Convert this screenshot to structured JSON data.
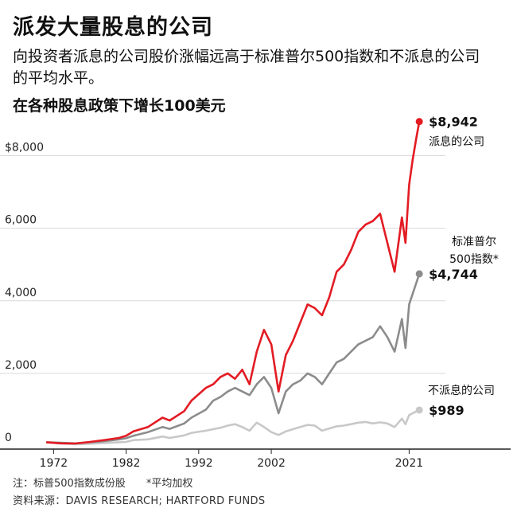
{
  "header": {
    "title": "派发大量股息的公司",
    "subtitle": "向投资者派息的公司股价涨幅远高于标准普尔500指数和不派息的公司的平均水平。",
    "metric": "在各种股息政策下增长100美元"
  },
  "chart_data": {
    "type": "line",
    "title": "在各种股息政策下增长100美元",
    "xlabel": "",
    "ylabel": "",
    "xlim": [
      1969,
      2026
    ],
    "ylim": [
      0,
      9000
    ],
    "x_ticks": [
      1972,
      1982,
      1992,
      2002,
      2021
    ],
    "y_ticks": [
      {
        "value": 0,
        "label": "0"
      },
      {
        "value": 2000,
        "label": "2,000"
      },
      {
        "value": 4000,
        "label": "4,000"
      },
      {
        "value": 6000,
        "label": "6,000"
      },
      {
        "value": 8000,
        "label": "$8,000"
      }
    ],
    "grid": "horizontal",
    "series": [
      {
        "name": "派息的公司",
        "color": "#e31b23",
        "end_label": "$8,942",
        "end_value": 8942,
        "points": [
          [
            1971,
            100
          ],
          [
            1973,
            70
          ],
          [
            1975,
            65
          ],
          [
            1977,
            110
          ],
          [
            1979,
            160
          ],
          [
            1981,
            220
          ],
          [
            1982,
            280
          ],
          [
            1983,
            400
          ],
          [
            1985,
            520
          ],
          [
            1987,
            780
          ],
          [
            1988,
            700
          ],
          [
            1990,
            960
          ],
          [
            1991,
            1250
          ],
          [
            1993,
            1600
          ],
          [
            1994,
            1700
          ],
          [
            1995,
            1900
          ],
          [
            1996,
            2000
          ],
          [
            1997,
            1850
          ],
          [
            1998,
            2100
          ],
          [
            1999,
            1700
          ],
          [
            2000,
            2600
          ],
          [
            2001,
            3200
          ],
          [
            2002,
            2800
          ],
          [
            2003,
            1500
          ],
          [
            2004,
            2500
          ],
          [
            2005,
            2900
          ],
          [
            2006,
            3400
          ],
          [
            2007,
            3900
          ],
          [
            2008,
            3800
          ],
          [
            2009,
            3600
          ],
          [
            2010,
            4100
          ],
          [
            2011,
            4800
          ],
          [
            2012,
            5000
          ],
          [
            2013,
            5400
          ],
          [
            2014,
            5900
          ],
          [
            2015,
            6100
          ],
          [
            2016,
            6200
          ],
          [
            2017,
            6400
          ],
          [
            2018,
            5600
          ],
          [
            2019,
            4800
          ],
          [
            2020,
            6300
          ],
          [
            2020.5,
            5600
          ],
          [
            2021,
            7200
          ],
          [
            2021.5,
            7900
          ],
          [
            2022,
            8500
          ],
          [
            2022.4,
            8942
          ]
        ]
      },
      {
        "name": "标准普尔500指数*",
        "color": "#8c8c8c",
        "end_label": "$4,744",
        "end_value": 4744,
        "points": [
          [
            1971,
            100
          ],
          [
            1973,
            85
          ],
          [
            1975,
            70
          ],
          [
            1977,
            100
          ],
          [
            1979,
            130
          ],
          [
            1981,
            180
          ],
          [
            1982,
            210
          ],
          [
            1983,
            280
          ],
          [
            1985,
            380
          ],
          [
            1987,
            520
          ],
          [
            1988,
            470
          ],
          [
            1990,
            620
          ],
          [
            1991,
            780
          ],
          [
            1993,
            1000
          ],
          [
            1994,
            1250
          ],
          [
            1995,
            1350
          ],
          [
            1996,
            1500
          ],
          [
            1997,
            1600
          ],
          [
            1998,
            1500
          ],
          [
            1999,
            1400
          ],
          [
            2000,
            1700
          ],
          [
            2001,
            1900
          ],
          [
            2002,
            1600
          ],
          [
            2003,
            900
          ],
          [
            2004,
            1500
          ],
          [
            2005,
            1700
          ],
          [
            2006,
            1800
          ],
          [
            2007,
            2000
          ],
          [
            2008,
            1900
          ],
          [
            2009,
            1700
          ],
          [
            2010,
            2000
          ],
          [
            2011,
            2300
          ],
          [
            2012,
            2400
          ],
          [
            2013,
            2600
          ],
          [
            2014,
            2800
          ],
          [
            2015,
            2900
          ],
          [
            2016,
            3000
          ],
          [
            2017,
            3300
          ],
          [
            2018,
            3000
          ],
          [
            2019,
            2600
          ],
          [
            2020,
            3500
          ],
          [
            2020.5,
            2700
          ],
          [
            2021,
            3900
          ],
          [
            2021.5,
            4200
          ],
          [
            2022,
            4500
          ],
          [
            2022.4,
            4744
          ]
        ]
      },
      {
        "name": "不派息的公司",
        "color": "#c8c8c8",
        "end_label": "$989",
        "end_value": 989,
        "points": [
          [
            1971,
            100
          ],
          [
            1973,
            70
          ],
          [
            1975,
            45
          ],
          [
            1977,
            60
          ],
          [
            1979,
            80
          ],
          [
            1981,
            100
          ],
          [
            1982,
            110
          ],
          [
            1983,
            160
          ],
          [
            1985,
            180
          ],
          [
            1987,
            260
          ],
          [
            1988,
            220
          ],
          [
            1990,
            290
          ],
          [
            1991,
            360
          ],
          [
            1993,
            420
          ],
          [
            1994,
            460
          ],
          [
            1995,
            500
          ],
          [
            1996,
            560
          ],
          [
            1997,
            600
          ],
          [
            1998,
            520
          ],
          [
            1999,
            420
          ],
          [
            2000,
            640
          ],
          [
            2001,
            520
          ],
          [
            2002,
            380
          ],
          [
            2003,
            300
          ],
          [
            2004,
            400
          ],
          [
            2005,
            460
          ],
          [
            2006,
            520
          ],
          [
            2007,
            580
          ],
          [
            2008,
            560
          ],
          [
            2009,
            420
          ],
          [
            2010,
            480
          ],
          [
            2011,
            540
          ],
          [
            2012,
            560
          ],
          [
            2013,
            600
          ],
          [
            2014,
            640
          ],
          [
            2015,
            660
          ],
          [
            2016,
            620
          ],
          [
            2017,
            650
          ],
          [
            2018,
            620
          ],
          [
            2019,
            520
          ],
          [
            2020,
            750
          ],
          [
            2020.5,
            600
          ],
          [
            2021,
            850
          ],
          [
            2021.5,
            900
          ],
          [
            2022,
            950
          ],
          [
            2022.4,
            989
          ]
        ]
      }
    ],
    "series_labels": [
      {
        "series": 0,
        "lines": [
          "派息的公司"
        ]
      },
      {
        "series": 1,
        "lines": [
          "标准普尔",
          "500指数*"
        ]
      },
      {
        "series": 2,
        "lines": [
          "不派息的公司"
        ]
      }
    ]
  },
  "footer": {
    "note": "注：标普500指数成份股　　*平均加权",
    "source": "资料来源：DAVIS RESEARCH; HARTFORD FUNDS"
  }
}
